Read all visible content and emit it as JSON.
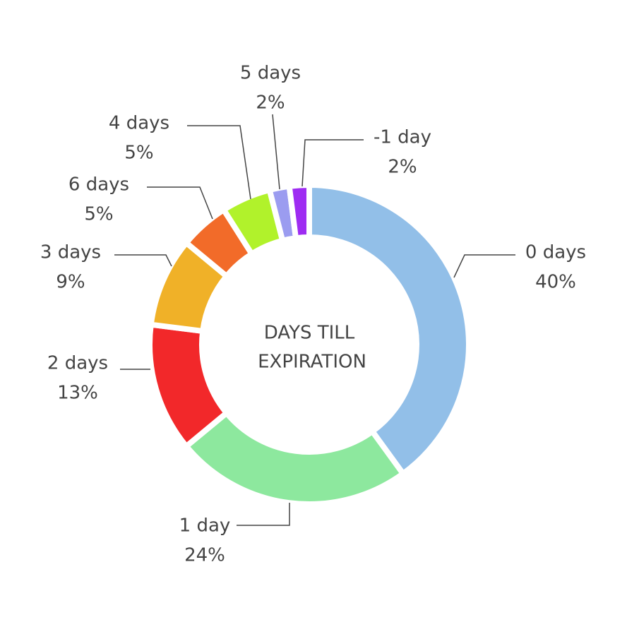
{
  "chart_data": {
    "type": "donut",
    "center_label": [
      "DAYS TILL",
      "EXPIRATION"
    ],
    "categories": [
      "0 days",
      "1 day",
      "2 days",
      "3 days",
      "6 days",
      "4 days",
      "5 days",
      "-1 day"
    ],
    "values": [
      40,
      24,
      13,
      9,
      5,
      5,
      2,
      2
    ],
    "value_labels": [
      "40%",
      "24%",
      "13%",
      "9%",
      "5%",
      "5%",
      "2%",
      "2%"
    ],
    "colors": [
      "#92bfe8",
      "#8de89e",
      "#f2282a",
      "#f0b128",
      "#f26b29",
      "#b1f22b",
      "#9b9cf0",
      "#9e2cf2"
    ]
  }
}
